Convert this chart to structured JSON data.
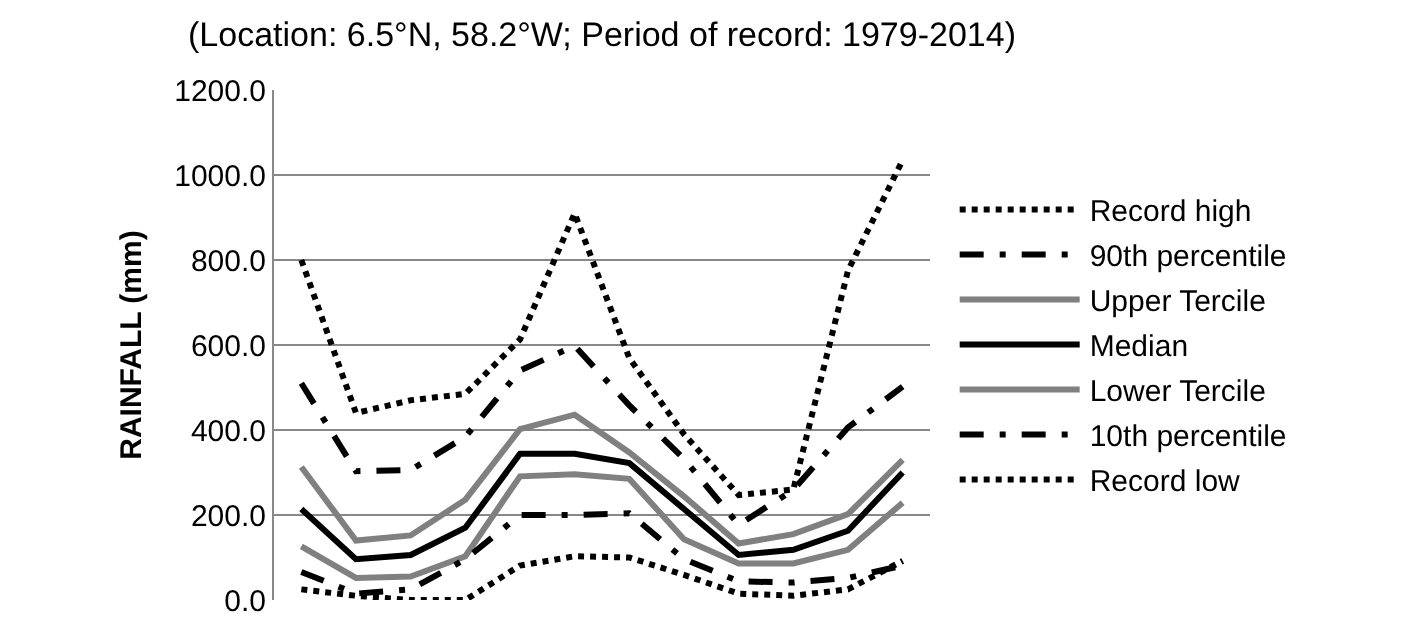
{
  "chart_data": {
    "type": "line",
    "title": "(Location: 6.5°N, 58.2°W; Period of record: 1979-2014)",
    "ylabel": "RAINFALL (mm)",
    "categories": [
      null,
      null,
      null,
      null,
      null,
      null,
      null,
      null,
      null,
      null,
      null,
      null
    ],
    "series": [
      {
        "name": "Record high",
        "color": "#000000",
        "line_style": "dotted",
        "values": [
          800,
          440,
          470,
          485,
          613,
          910,
          569,
          390,
          247,
          260,
          775,
          1035
        ]
      },
      {
        "name": "90th percentile",
        "color": "#000000",
        "line_style": "dashed",
        "values": [
          510,
          303,
          306,
          384,
          540,
          598,
          458,
          332,
          177,
          259,
          406,
          502
        ]
      },
      {
        "name": "Upper Tercile",
        "color": "#808080",
        "line_style": "solid",
        "values": [
          313,
          140,
          152,
          236,
          402,
          436,
          347,
          244,
          133,
          155,
          202,
          330
        ]
      },
      {
        "name": "Median",
        "color": "#000000",
        "line_style": "solid",
        "values": [
          214,
          96,
          106,
          170,
          344,
          344,
          322,
          214,
          106,
          118,
          163,
          300
        ]
      },
      {
        "name": "Lower Tercile",
        "color": "#808080",
        "line_style": "solid",
        "values": [
          126,
          52,
          55,
          103,
          291,
          296,
          285,
          143,
          86,
          86,
          118,
          229
        ]
      },
      {
        "name": "10th percentile",
        "color": "#000000",
        "line_style": "dashed",
        "values": [
          66,
          15,
          25,
          96,
          200,
          200,
          204,
          96,
          44,
          41,
          52,
          81
        ]
      },
      {
        "name": "Record low",
        "color": "#000000",
        "line_style": "dotted",
        "values": [
          25,
          10,
          0,
          0,
          81,
          103,
          100,
          59,
          15,
          10,
          25,
          92
        ]
      }
    ],
    "ylim": [
      0,
      1200
    ],
    "yticks": [
      {
        "value": 0,
        "label": "0.0"
      },
      {
        "value": 200,
        "label": "200.0"
      },
      {
        "value": 400,
        "label": "400.0"
      },
      {
        "value": 600,
        "label": "600.0"
      },
      {
        "value": 800,
        "label": "800.0"
      },
      {
        "value": 1000,
        "label": "1000.0"
      },
      {
        "value": 1200,
        "label": "1200.0"
      }
    ],
    "grid": "y",
    "legend": "right",
    "marker": "none",
    "tick_labels": "y"
  }
}
